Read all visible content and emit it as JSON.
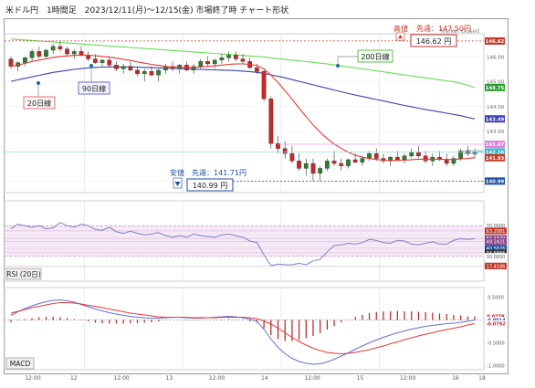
{
  "title": "米ドル円　1時間足　2023/12/11(月)～12/15(金) 市場終了時 チャート形状",
  "market_status": "Market Closed",
  "colors": {
    "bull": "#2e7d32",
    "bear": "#c62828",
    "ma20": "#e53935",
    "ma90": "#3f3faf",
    "ma200": "#66dd55",
    "rsi": "#8080c0",
    "macd": "#6070d8",
    "signal": "#e53935",
    "hist": "#b71c1c",
    "highlight": "#c0392b",
    "lowlight": "#1f4e9b"
  },
  "labels": {
    "ma20": "20日線",
    "ma90": "90日線",
    "ma200": "200日線",
    "high_tag": "高値",
    "high_prev": "先週：147.50円",
    "high_value": "146.62 円",
    "low_tag": "安値",
    "low_prev": "先週：141.71円",
    "low_value": "140.99 円",
    "pair": "USD/JPY",
    "rsi_panel": "RSI (20日)",
    "macd_panel": "MACD"
  },
  "chart_data": [
    {
      "type": "candlestick",
      "panel": "price",
      "x_tick_labels": [
        "12:00",
        "12",
        "12:00",
        "13",
        "12:00",
        "14",
        "12:00",
        "15",
        "12:00",
        "16",
        "18"
      ],
      "ylim": [
        140.6,
        146.8
      ],
      "y_ticks": [
        141,
        142,
        143,
        144,
        145,
        146
      ],
      "y_tick_labels": [
        "141.00",
        "142.00",
        "143.00",
        "144.00",
        "145.00",
        "146.00"
      ],
      "price_tags": [
        {
          "label": "146.62",
          "value": 146.62,
          "color": "#c0392b"
        },
        {
          "label": "144.75",
          "value": 144.75,
          "color": "#2e9e2e"
        },
        {
          "label": "143.49",
          "value": 143.49,
          "color": "#3f3faf"
        },
        {
          "label": "142.47",
          "value": 142.47,
          "color": "#e080e0"
        },
        {
          "label": "142.16",
          "value": 142.16,
          "color": "#39b3c6"
        },
        {
          "label": "141.93",
          "value": 141.93,
          "color": "#c0392b"
        },
        {
          "label": "140.99",
          "value": 140.99,
          "color": "#1f4e9b"
        }
      ],
      "candles": [
        [
          145.9,
          146.0,
          145.5,
          145.6
        ],
        [
          145.6,
          145.8,
          145.4,
          145.75
        ],
        [
          145.75,
          146.0,
          145.6,
          145.95
        ],
        [
          145.95,
          146.3,
          145.8,
          146.2
        ],
        [
          146.2,
          146.4,
          145.9,
          146.0
        ],
        [
          146.0,
          146.3,
          145.9,
          146.25
        ],
        [
          146.25,
          146.5,
          146.1,
          146.4
        ],
        [
          146.4,
          146.62,
          146.2,
          146.3
        ],
        [
          146.3,
          146.4,
          146.0,
          146.1
        ],
        [
          146.1,
          146.3,
          145.9,
          146.2
        ],
        [
          146.2,
          146.4,
          146.0,
          146.05
        ],
        [
          146.05,
          146.2,
          145.8,
          145.9
        ],
        [
          145.9,
          146.1,
          145.7,
          145.75
        ],
        [
          145.75,
          145.9,
          145.6,
          145.85
        ],
        [
          145.85,
          146.0,
          145.6,
          145.65
        ],
        [
          145.65,
          145.8,
          145.4,
          145.5
        ],
        [
          145.5,
          145.7,
          145.3,
          145.6
        ],
        [
          145.6,
          145.8,
          145.4,
          145.45
        ],
        [
          145.45,
          145.6,
          145.2,
          145.3
        ],
        [
          145.3,
          145.5,
          145.0,
          145.4
        ],
        [
          145.4,
          145.6,
          145.2,
          145.25
        ],
        [
          145.25,
          145.5,
          145.0,
          145.45
        ],
        [
          145.45,
          145.7,
          145.3,
          145.6
        ],
        [
          145.6,
          145.8,
          145.4,
          145.5
        ],
        [
          145.5,
          145.7,
          145.3,
          145.65
        ],
        [
          145.65,
          145.8,
          145.4,
          145.45
        ],
        [
          145.45,
          145.7,
          145.3,
          145.6
        ],
        [
          145.6,
          145.9,
          145.5,
          145.8
        ],
        [
          145.8,
          146.0,
          145.6,
          145.7
        ],
        [
          145.7,
          145.9,
          145.5,
          145.85
        ],
        [
          145.85,
          146.1,
          145.7,
          145.95
        ],
        [
          145.95,
          146.2,
          145.8,
          146.05
        ],
        [
          146.05,
          146.2,
          145.8,
          145.9
        ],
        [
          145.9,
          146.1,
          145.7,
          145.8
        ],
        [
          145.8,
          145.95,
          145.5,
          145.55
        ],
        [
          145.55,
          145.7,
          145.3,
          145.4
        ],
        [
          145.4,
          145.5,
          144.2,
          144.3
        ],
        [
          144.3,
          144.4,
          142.3,
          142.5
        ],
        [
          142.5,
          142.8,
          142.1,
          142.3
        ],
        [
          142.3,
          142.6,
          141.9,
          142.1
        ],
        [
          142.1,
          142.4,
          141.7,
          141.8
        ],
        [
          141.8,
          142.1,
          141.4,
          141.5
        ],
        [
          141.5,
          141.9,
          141.2,
          141.7
        ],
        [
          141.7,
          141.9,
          141.0,
          141.3
        ],
        [
          141.3,
          141.6,
          140.99,
          141.5
        ],
        [
          141.5,
          141.9,
          141.4,
          141.8
        ],
        [
          141.8,
          142.2,
          141.6,
          141.7
        ],
        [
          141.7,
          141.9,
          141.4,
          141.6
        ],
        [
          141.6,
          141.9,
          141.5,
          141.85
        ],
        [
          141.85,
          142.1,
          141.7,
          141.75
        ],
        [
          141.75,
          142.0,
          141.6,
          141.9
        ],
        [
          141.9,
          142.2,
          141.8,
          142.1
        ],
        [
          142.1,
          142.3,
          141.8,
          141.9
        ],
        [
          141.9,
          142.1,
          141.7,
          141.8
        ],
        [
          141.8,
          142.0,
          141.6,
          141.95
        ],
        [
          141.95,
          142.2,
          141.8,
          141.85
        ],
        [
          141.85,
          142.1,
          141.7,
          142.0
        ],
        [
          142.0,
          142.3,
          141.9,
          142.15
        ],
        [
          142.15,
          142.4,
          141.9,
          142.0
        ],
        [
          142.0,
          142.2,
          141.7,
          141.8
        ],
        [
          141.8,
          142.1,
          141.6,
          141.95
        ],
        [
          141.95,
          142.2,
          141.8,
          141.85
        ],
        [
          141.85,
          142.1,
          141.6,
          141.7
        ],
        [
          141.7,
          142.0,
          141.6,
          141.9
        ],
        [
          141.9,
          142.3,
          141.8,
          142.2
        ],
        [
          142.2,
          142.4,
          142.0,
          142.1
        ],
        [
          142.1,
          142.3,
          141.9,
          142.16
        ]
      ],
      "ma20": [
        145.6,
        145.65,
        145.72,
        145.8,
        145.85,
        145.9,
        145.96,
        146.0,
        146.02,
        146.04,
        146.05,
        146.05,
        146.03,
        146.0,
        145.97,
        145.93,
        145.88,
        145.84,
        145.78,
        145.73,
        145.68,
        145.64,
        145.6,
        145.58,
        145.57,
        145.56,
        145.56,
        145.58,
        145.6,
        145.62,
        145.65,
        145.68,
        145.7,
        145.7,
        145.68,
        145.64,
        145.5,
        145.25,
        144.95,
        144.62,
        144.28,
        143.92,
        143.58,
        143.25,
        142.95,
        142.7,
        142.48,
        142.3,
        142.15,
        142.03,
        141.95,
        141.9,
        141.86,
        141.83,
        141.82,
        141.82,
        141.83,
        141.85,
        141.87,
        141.87,
        141.87,
        141.87,
        141.86,
        141.86,
        141.88,
        141.9,
        141.93
      ],
      "ma90": [
        145.0,
        145.06,
        145.12,
        145.18,
        145.24,
        145.3,
        145.36,
        145.4,
        145.44,
        145.48,
        145.51,
        145.54,
        145.56,
        145.57,
        145.58,
        145.58,
        145.58,
        145.58,
        145.57,
        145.56,
        145.55,
        145.54,
        145.53,
        145.52,
        145.51,
        145.5,
        145.49,
        145.48,
        145.47,
        145.46,
        145.45,
        145.44,
        145.43,
        145.41,
        145.39,
        145.36,
        145.32,
        145.26,
        145.2,
        145.14,
        145.07,
        145.0,
        144.93,
        144.86,
        144.79,
        144.72,
        144.65,
        144.58,
        144.51,
        144.45,
        144.39,
        144.33,
        144.27,
        144.21,
        144.15,
        144.09,
        144.03,
        143.98,
        143.92,
        143.87,
        143.82,
        143.77,
        143.72,
        143.67,
        143.62,
        143.55,
        143.49
      ],
      "ma200": [
        146.7,
        146.68,
        146.66,
        146.64,
        146.62,
        146.6,
        146.58,
        146.56,
        146.54,
        146.52,
        146.5,
        146.48,
        146.46,
        146.44,
        146.42,
        146.4,
        146.38,
        146.36,
        146.34,
        146.32,
        146.3,
        146.28,
        146.26,
        146.24,
        146.22,
        146.2,
        146.18,
        146.16,
        146.14,
        146.12,
        146.1,
        146.08,
        146.06,
        146.04,
        146.02,
        146.0,
        145.97,
        145.94,
        145.91,
        145.88,
        145.85,
        145.82,
        145.79,
        145.76,
        145.73,
        145.7,
        145.66,
        145.62,
        145.58,
        145.54,
        145.5,
        145.46,
        145.42,
        145.38,
        145.34,
        145.3,
        145.26,
        145.22,
        145.18,
        145.14,
        145.1,
        145.06,
        145.02,
        144.98,
        144.92,
        144.84,
        144.75
      ]
    },
    {
      "type": "line",
      "panel": "rsi",
      "name": "RSI (20日)",
      "ylim": [
        0,
        100
      ],
      "y_tick_labels": [
        "70.0000",
        "63.2081",
        "53.4379",
        "49.2421",
        "40.5626",
        "34.5866",
        "30.0000",
        "17.4186"
      ],
      "y_tick_values": [
        70,
        63.21,
        53.44,
        49.24,
        40.56,
        34.59,
        30,
        17.42
      ],
      "values": [
        66,
        72,
        70,
        68,
        70,
        66,
        67,
        74,
        70,
        68,
        72,
        70,
        65,
        64,
        68,
        62,
        60,
        63,
        60,
        58,
        59,
        61,
        57,
        55,
        57,
        55,
        59,
        57,
        56,
        55,
        58,
        59,
        57,
        55,
        50,
        48,
        32,
        18,
        20,
        19,
        19,
        21,
        19,
        24,
        26,
        36,
        44,
        45,
        47,
        46,
        48,
        52,
        51,
        48,
        47,
        51,
        50,
        46,
        45,
        47,
        49,
        46,
        46,
        51,
        53,
        52,
        53
      ]
    },
    {
      "type": "bar+line",
      "panel": "macd",
      "name": "MACD",
      "ylim": [
        -1.05,
        0.65
      ],
      "y_tick_labels": [
        "0.5000",
        "0.0779",
        "-0.0014",
        "-0.0792",
        "-0.5000",
        "-1.0000"
      ],
      "y_tick_values": [
        0.5,
        0.0779,
        -0.0014,
        -0.0792,
        -0.5,
        -1.0
      ],
      "macd": [
        0.1,
        0.18,
        0.25,
        0.31,
        0.36,
        0.4,
        0.43,
        0.44,
        0.42,
        0.39,
        0.34,
        0.29,
        0.24,
        0.2,
        0.16,
        0.13,
        0.1,
        0.08,
        0.06,
        0.05,
        0.04,
        0.04,
        0.05,
        0.06,
        0.06,
        0.05,
        0.04,
        0.04,
        0.05,
        0.06,
        0.07,
        0.08,
        0.07,
        0.05,
        0.02,
        -0.03,
        -0.2,
        -0.42,
        -0.6,
        -0.74,
        -0.84,
        -0.91,
        -0.95,
        -0.97,
        -0.96,
        -0.92,
        -0.86,
        -0.79,
        -0.72,
        -0.64,
        -0.57,
        -0.5,
        -0.44,
        -0.38,
        -0.33,
        -0.28,
        -0.24,
        -0.2,
        -0.17,
        -0.14,
        -0.12,
        -0.1,
        -0.08,
        -0.07,
        -0.05,
        -0.03,
        -0.0014
      ],
      "signal": [
        0.15,
        0.19,
        0.23,
        0.27,
        0.3,
        0.33,
        0.36,
        0.38,
        0.38,
        0.37,
        0.35,
        0.32,
        0.3,
        0.27,
        0.24,
        0.21,
        0.18,
        0.15,
        0.13,
        0.11,
        0.09,
        0.07,
        0.06,
        0.06,
        0.06,
        0.06,
        0.05,
        0.05,
        0.05,
        0.05,
        0.06,
        0.06,
        0.06,
        0.06,
        0.05,
        0.03,
        -0.02,
        -0.09,
        -0.18,
        -0.28,
        -0.38,
        -0.47,
        -0.55,
        -0.62,
        -0.67,
        -0.71,
        -0.73,
        -0.74,
        -0.73,
        -0.71,
        -0.68,
        -0.65,
        -0.61,
        -0.57,
        -0.52,
        -0.48,
        -0.43,
        -0.39,
        -0.35,
        -0.31,
        -0.28,
        -0.24,
        -0.21,
        -0.18,
        -0.15,
        -0.11,
        -0.0792
      ],
      "histogram": [
        -0.05,
        -0.01,
        0.02,
        0.04,
        0.06,
        0.07,
        0.07,
        0.06,
        0.04,
        0.02,
        -0.01,
        -0.03,
        -0.06,
        -0.07,
        -0.08,
        -0.08,
        -0.08,
        -0.07,
        -0.07,
        -0.06,
        -0.05,
        -0.03,
        -0.01,
        0.0,
        0.0,
        -0.01,
        -0.01,
        -0.01,
        0.0,
        0.01,
        0.01,
        0.02,
        0.01,
        -0.01,
        -0.03,
        -0.06,
        -0.18,
        -0.33,
        -0.42,
        -0.46,
        -0.46,
        -0.44,
        -0.4,
        -0.35,
        -0.29,
        -0.21,
        -0.13,
        -0.05,
        0.01,
        0.07,
        0.11,
        0.15,
        0.17,
        0.19,
        0.19,
        0.2,
        0.19,
        0.19,
        0.18,
        0.17,
        0.16,
        0.14,
        0.13,
        0.11,
        0.1,
        0.08,
        0.0779
      ]
    }
  ]
}
